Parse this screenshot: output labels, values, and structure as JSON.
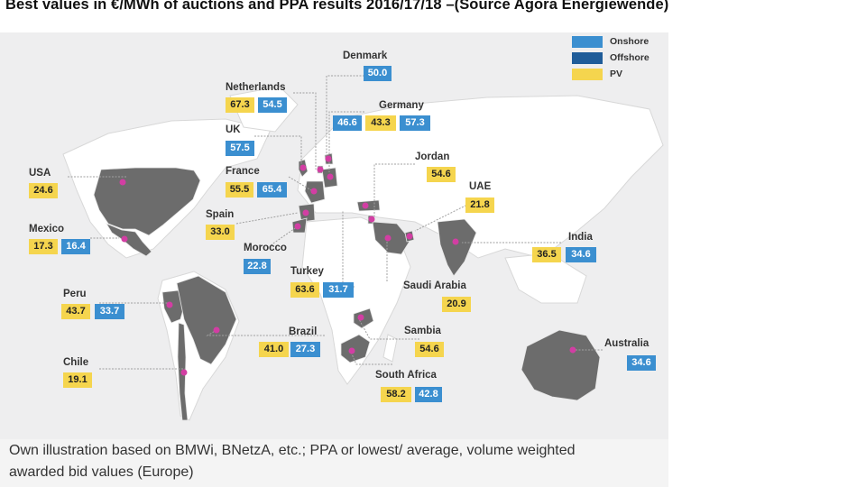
{
  "title": "Best values in €/MWh of auctions and PPA results 2016/17/18 –(Source Agora Energiewende)",
  "legend": {
    "onshore": "Onshore",
    "offshore": "Offshore",
    "pv": "PV"
  },
  "colors": {
    "onshore": "#3b8fd0",
    "offshore": "#1f5c99",
    "pv": "#f5d54e",
    "country_fill": "#6c6c6c",
    "marker": "#d23ea3"
  },
  "countries": {
    "denmark": {
      "name": "Denmark",
      "onshore": "50.0"
    },
    "netherlands": {
      "name": "Netherlands",
      "pv": "67.3",
      "onshore": "54.5"
    },
    "germany": {
      "name": "Germany",
      "onshore": "46.6",
      "pv": "43.3",
      "offshore": "57.3"
    },
    "uk": {
      "name": "UK",
      "onshore": "57.5"
    },
    "france": {
      "name": "France",
      "pv": "55.5",
      "onshore": "65.4"
    },
    "usa": {
      "name": "USA",
      "pv": "24.6"
    },
    "jordan": {
      "name": "Jordan",
      "pv": "54.6"
    },
    "uae": {
      "name": "UAE",
      "pv": "21.8"
    },
    "spain": {
      "name": "Spain",
      "pv": "33.0"
    },
    "mexico": {
      "name": "Mexico",
      "pv": "17.3",
      "onshore": "16.4"
    },
    "india": {
      "name": "India",
      "pv": "36.5",
      "onshore": "34.6"
    },
    "morocco": {
      "name": "Morocco",
      "onshore": "22.8"
    },
    "turkey": {
      "name": "Turkey",
      "pv": "63.6",
      "onshore": "31.7"
    },
    "saudi_arabia": {
      "name": "Saudi Arabia",
      "pv": "20.9"
    },
    "peru": {
      "name": "Peru",
      "pv": "43.7",
      "onshore": "33.7"
    },
    "brazil": {
      "name": "Brazil",
      "pv": "41.0",
      "onshore": "27.3"
    },
    "sambia": {
      "name": "Sambia",
      "pv": "54.6"
    },
    "australia": {
      "name": "Australia",
      "onshore": "34.6"
    },
    "chile": {
      "name": "Chile",
      "pv": "19.1"
    },
    "south_africa": {
      "name": "South Africa",
      "pv": "58.2",
      "onshore": "42.8"
    }
  },
  "caption": {
    "line1": "Own illustration based on BMWi, BNetzA, etc.; PPA or lowest/ average, volume weighted",
    "line2": "awarded bid values (Europe)"
  }
}
